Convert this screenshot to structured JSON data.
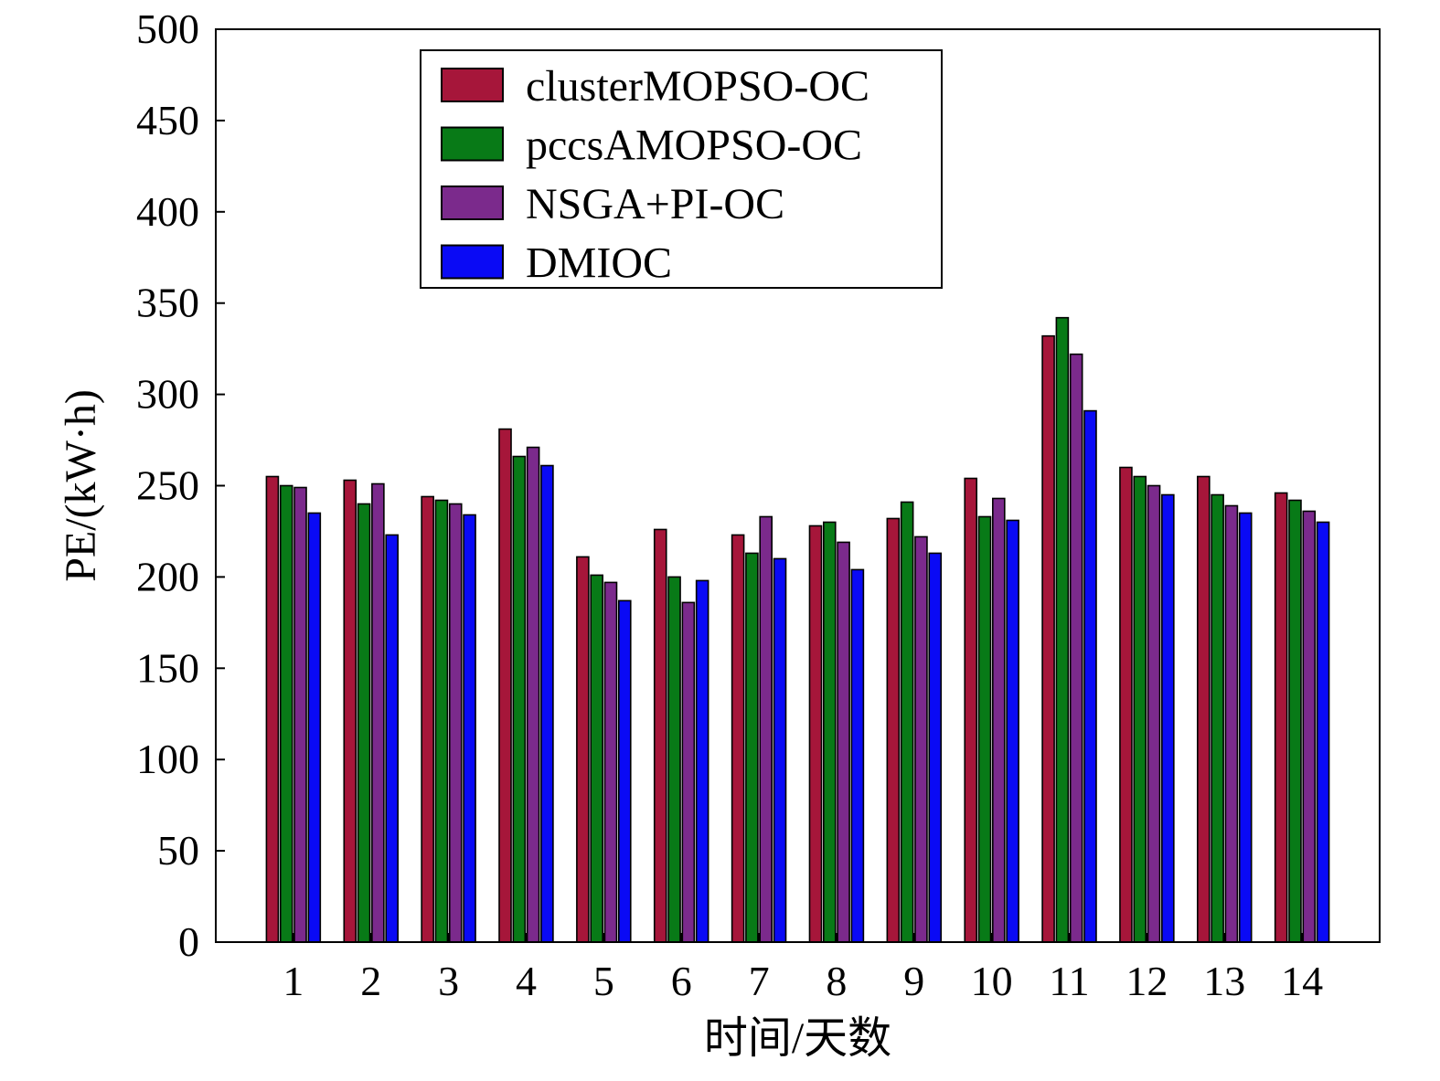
{
  "chart_data": {
    "type": "bar",
    "title": "",
    "xlabel": "时间/天数",
    "ylabel": "PE/(kW·h)",
    "ylim": [
      0,
      500
    ],
    "yticks": [
      0,
      50,
      100,
      150,
      200,
      250,
      300,
      350,
      400,
      450,
      500
    ],
    "grid": false,
    "legend_position": "top-center",
    "categories": [
      "1",
      "2",
      "3",
      "4",
      "5",
      "6",
      "7",
      "8",
      "9",
      "10",
      "11",
      "12",
      "13",
      "14"
    ],
    "series": [
      {
        "name": "clusterMOPSO-OC",
        "color": "#a6163a",
        "values": [
          255,
          253,
          244,
          281,
          211,
          226,
          223,
          228,
          232,
          254,
          332,
          260,
          255,
          246
        ]
      },
      {
        "name": "pccsAMOPSO-OC",
        "color": "#087a17",
        "values": [
          250,
          240,
          242,
          266,
          201,
          200,
          213,
          230,
          241,
          233,
          342,
          255,
          245,
          242
        ]
      },
      {
        "name": "NSGA+PI-OC",
        "color": "#7b2a8c",
        "values": [
          249,
          251,
          240,
          271,
          197,
          186,
          233,
          219,
          222,
          243,
          322,
          250,
          239,
          236
        ]
      },
      {
        "name": "DMIOC",
        "color": "#0a0af5",
        "values": [
          235,
          223,
          234,
          261,
          187,
          198,
          210,
          204,
          213,
          231,
          291,
          245,
          235,
          230
        ]
      }
    ]
  }
}
